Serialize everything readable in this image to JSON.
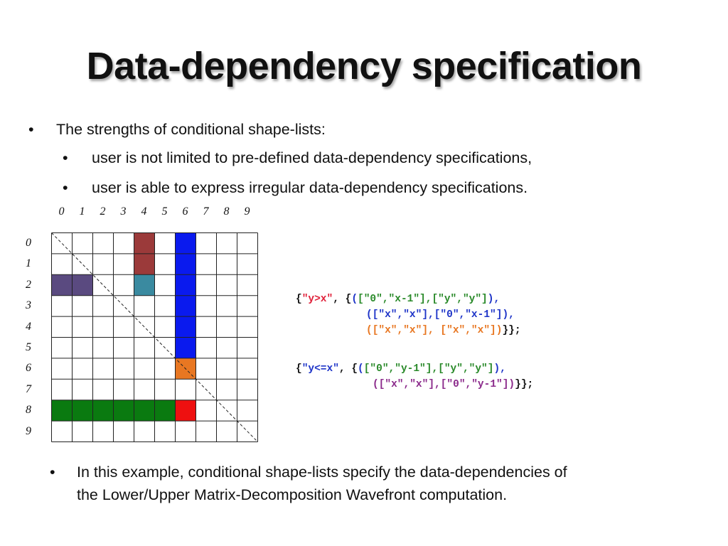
{
  "slide": {
    "title": "Data-dependency specification",
    "bullets": [
      {
        "text": "The strengths of conditional shape-lists:"
      },
      {
        "text": "user is not limited to pre-defined data-dependency specifications,"
      },
      {
        "text": "user is able to express irregular data-dependency specifications."
      }
    ],
    "bottom_bullet": {
      "line1": "In this example, conditional shape-lists specify the data-dependencies of",
      "line2": "the Lower/Upper Matrix-Decomposition Wavefront computation."
    },
    "bullet_glyph": "•"
  },
  "grid": {
    "col_labels": [
      "0",
      "1",
      "2",
      "3",
      "4",
      "5",
      "6",
      "7",
      "8",
      "9"
    ],
    "row_labels": [
      "0",
      "1",
      "2",
      "3",
      "4",
      "5",
      "6",
      "7",
      "8",
      "9"
    ],
    "size": 10,
    "diagonal": true,
    "cells": [
      {
        "row": 0,
        "col": 4,
        "color": "#9b3a3a"
      },
      {
        "row": 1,
        "col": 4,
        "color": "#9b3a3a"
      },
      {
        "row": 2,
        "col": 0,
        "color": "#5a4a80"
      },
      {
        "row": 2,
        "col": 1,
        "color": "#5a4a80"
      },
      {
        "row": 2,
        "col": 4,
        "color": "#3a8aa0"
      },
      {
        "row": 0,
        "col": 6,
        "color": "#0a1aee"
      },
      {
        "row": 1,
        "col": 6,
        "color": "#0a1aee"
      },
      {
        "row": 2,
        "col": 6,
        "color": "#0a1aee"
      },
      {
        "row": 3,
        "col": 6,
        "color": "#0a1aee"
      },
      {
        "row": 4,
        "col": 6,
        "color": "#0a1aee"
      },
      {
        "row": 5,
        "col": 6,
        "color": "#0a1aee"
      },
      {
        "row": 6,
        "col": 6,
        "color": "#e87722"
      },
      {
        "row": 8,
        "col": 0,
        "color": "#0a7a10"
      },
      {
        "row": 8,
        "col": 1,
        "color": "#0a7a10"
      },
      {
        "row": 8,
        "col": 2,
        "color": "#0a7a10"
      },
      {
        "row": 8,
        "col": 3,
        "color": "#0a7a10"
      },
      {
        "row": 8,
        "col": 4,
        "color": "#0a7a10"
      },
      {
        "row": 8,
        "col": 5,
        "color": "#0a7a10"
      },
      {
        "row": 8,
        "col": 6,
        "color": "#ee1010"
      }
    ]
  },
  "code": {
    "block1": {
      "open": "{",
      "cond": "\"y>x\"",
      "sep": ", {",
      "l1_paren_open": "(",
      "l1_body": "[\"0\",\"x-1\"],[\"y\",\"y\"]",
      "l1_paren_close": "),",
      "l2_paren_open": "(",
      "l2_body": "[\"x\",\"x\"],[\"0\",\"x-1\"]",
      "l2_paren_close": "),",
      "l3_body": "([\"x\",\"x\"], [\"x\",\"x\"])",
      "l3_close": "}};"
    },
    "block2": {
      "open": "{",
      "cond": "\"y<=x\"",
      "sep": ", {",
      "l1_paren_open": "(",
      "l1_body": "[\"0\",\"y-1\"],[\"y\",\"y\"]",
      "l1_paren_close": "),",
      "l2_body": "([\"x\",\"x\"],[\"0\",\"y-1\"])",
      "l2_close": "}};"
    }
  },
  "colors": {
    "red_text": "#e0213a",
    "blue_text": "#1f35c8",
    "green_text": "#2a8a2a",
    "orange_text": "#e87722",
    "purple_text": "#8b2a8b"
  }
}
